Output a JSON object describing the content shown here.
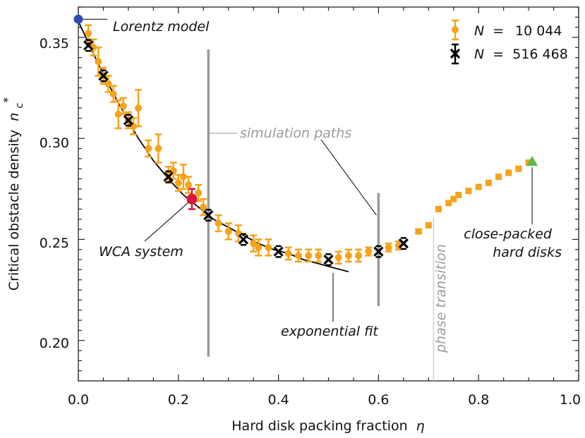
{
  "chart_data": {
    "type": "scatter",
    "xlabel": "Hard disk packing fraction",
    "xlabel_symbol": "η",
    "ylabel": "Critical obstacle density",
    "ylabel_symbol": "n",
    "ylabel_sub": "c",
    "ylabel_sup": "*",
    "xlim": [
      0.0,
      1.0
    ],
    "ylim": [
      0.18,
      0.365
    ],
    "x_ticks": [
      0.0,
      0.2,
      0.4,
      0.6,
      0.8,
      1.0
    ],
    "x_tick_labels": [
      "0.0",
      "0.2",
      "0.4",
      "0.6",
      "0.8",
      "1.0"
    ],
    "y_ticks": [
      0.2,
      0.25,
      0.3,
      0.35
    ],
    "y_tick_labels": [
      "0.20",
      "0.25",
      "0.30",
      "0.35"
    ],
    "legend": {
      "position": "top-right",
      "entries": [
        {
          "label_prefix": "N",
          "label_eq": "=",
          "label_value": "10 044"
        },
        {
          "label_prefix": "N",
          "label_eq": "=",
          "label_value": "516 468"
        }
      ]
    },
    "series": [
      {
        "name": "N = 10 044",
        "color": "#f5a31a",
        "marker": "circle",
        "points": [
          {
            "x": 0.02,
            "y": 0.352,
            "err": 0.004
          },
          {
            "x": 0.03,
            "y": 0.345,
            "err": 0.004
          },
          {
            "x": 0.04,
            "y": 0.338,
            "err": 0.007
          },
          {
            "x": 0.05,
            "y": 0.331,
            "err": 0.004
          },
          {
            "x": 0.06,
            "y": 0.327,
            "err": 0.004
          },
          {
            "x": 0.07,
            "y": 0.322,
            "err": 0.004
          },
          {
            "x": 0.08,
            "y": 0.312,
            "err": 0.007
          },
          {
            "x": 0.09,
            "y": 0.316,
            "err": 0.004
          },
          {
            "x": 0.1,
            "y": 0.309,
            "err": 0.004
          },
          {
            "x": 0.11,
            "y": 0.306,
            "err": 0.004
          },
          {
            "x": 0.12,
            "y": 0.315,
            "err": 0.009
          },
          {
            "x": 0.14,
            "y": 0.295,
            "err": 0.004
          },
          {
            "x": 0.16,
            "y": 0.295,
            "err": 0.007
          },
          {
            "x": 0.18,
            "y": 0.282,
            "err": 0.004
          },
          {
            "x": 0.19,
            "y": 0.284,
            "err": 0.004
          },
          {
            "x": 0.2,
            "y": 0.278,
            "err": 0.004
          },
          {
            "x": 0.21,
            "y": 0.281,
            "err": 0.006
          },
          {
            "x": 0.22,
            "y": 0.277,
            "err": 0.004
          },
          {
            "x": 0.24,
            "y": 0.273,
            "err": 0.004
          },
          {
            "x": 0.25,
            "y": 0.266,
            "err": 0.004
          },
          {
            "x": 0.28,
            "y": 0.258,
            "err": 0.004
          },
          {
            "x": 0.3,
            "y": 0.254,
            "err": 0.004
          },
          {
            "x": 0.32,
            "y": 0.253,
            "err": 0.004
          },
          {
            "x": 0.35,
            "y": 0.248,
            "err": 0.004
          },
          {
            "x": 0.36,
            "y": 0.246,
            "err": 0.004
          },
          {
            "x": 0.38,
            "y": 0.246,
            "err": 0.004
          },
          {
            "x": 0.42,
            "y": 0.243,
            "err": 0.003
          },
          {
            "x": 0.44,
            "y": 0.242,
            "err": 0.003
          },
          {
            "x": 0.46,
            "y": 0.242,
            "err": 0.003
          },
          {
            "x": 0.48,
            "y": 0.242,
            "err": 0.003
          },
          {
            "x": 0.52,
            "y": 0.241,
            "err": 0.003
          },
          {
            "x": 0.54,
            "y": 0.242,
            "err": 0.003
          },
          {
            "x": 0.56,
            "y": 0.242,
            "err": 0.003
          },
          {
            "x": 0.58,
            "y": 0.244,
            "err": 0.002
          },
          {
            "x": 0.62,
            "y": 0.246,
            "err": 0.002
          },
          {
            "x": 0.64,
            "y": 0.247,
            "err": 0.002
          },
          {
            "x": 0.68,
            "y": 0.254,
            "err": 0.001
          },
          {
            "x": 0.7,
            "y": 0.257,
            "err": 0.001
          },
          {
            "x": 0.72,
            "y": 0.265,
            "err": 0.001
          },
          {
            "x": 0.74,
            "y": 0.268,
            "err": 0.001
          },
          {
            "x": 0.75,
            "y": 0.27,
            "err": 0.001
          },
          {
            "x": 0.76,
            "y": 0.272,
            "err": 0.001
          },
          {
            "x": 0.78,
            "y": 0.274,
            "err": 0.001
          },
          {
            "x": 0.8,
            "y": 0.276,
            "err": 0.001
          },
          {
            "x": 0.82,
            "y": 0.278,
            "err": 0.001
          },
          {
            "x": 0.84,
            "y": 0.281,
            "err": 0.001
          },
          {
            "x": 0.86,
            "y": 0.283,
            "err": 0.001
          },
          {
            "x": 0.88,
            "y": 0.285,
            "err": 0.001
          },
          {
            "x": 0.9,
            "y": 0.288,
            "err": 0.001
          }
        ]
      },
      {
        "name": "N = 516 468",
        "color": "#000000",
        "marker": "x",
        "points": [
          {
            "x": 0.02,
            "y": 0.346,
            "err": 0.002
          },
          {
            "x": 0.05,
            "y": 0.331,
            "err": 0.002
          },
          {
            "x": 0.1,
            "y": 0.309,
            "err": 0.002
          },
          {
            "x": 0.18,
            "y": 0.281,
            "err": 0.002
          },
          {
            "x": 0.26,
            "y": 0.262,
            "err": 0.002
          },
          {
            "x": 0.33,
            "y": 0.25,
            "err": 0.002
          },
          {
            "x": 0.4,
            "y": 0.244,
            "err": 0.002
          },
          {
            "x": 0.5,
            "y": 0.24,
            "err": 0.002
          },
          {
            "x": 0.6,
            "y": 0.244,
            "err": 0.002
          },
          {
            "x": 0.65,
            "y": 0.248,
            "err": 0.002
          }
        ]
      }
    ],
    "fit_curve": {
      "name": "exponential fit",
      "x": [
        0.0,
        0.03,
        0.06,
        0.09,
        0.12,
        0.15,
        0.18,
        0.21,
        0.24,
        0.27,
        0.3,
        0.33,
        0.36,
        0.39,
        0.42,
        0.45,
        0.48,
        0.51,
        0.54
      ],
      "y": [
        0.358,
        0.342,
        0.327,
        0.313,
        0.3,
        0.289,
        0.28,
        0.272,
        0.266,
        0.26,
        0.256,
        0.252,
        0.248,
        0.245,
        0.243,
        0.24,
        0.238,
        0.236,
        0.234
      ]
    },
    "special_points": [
      {
        "name": "Lorentz model",
        "x": 0.0,
        "y": 0.359,
        "color": "#2b4fa8",
        "marker": "circle"
      },
      {
        "name": "WCA system",
        "x": 0.227,
        "y": 0.27,
        "err": 0.005,
        "color": "#e0143c",
        "marker": "circle"
      },
      {
        "name": "close-packed hard disks",
        "x": 0.907,
        "y": 0.2885,
        "color": "#5cb84a",
        "marker": "triangle"
      }
    ],
    "simulation_paths": [
      {
        "x": 0.26,
        "y_range": [
          0.192,
          0.344
        ]
      },
      {
        "x": 0.6,
        "y_range": [
          0.217,
          0.273
        ]
      }
    ],
    "phase_transition_x": 0.71,
    "annotations": {
      "lorentz": "Lorentz model",
      "wca": "WCA system",
      "sim_paths": "simulation paths",
      "exp_fit": "exponential fit",
      "phase": "phase transition",
      "close_packed_line1": "close-packed",
      "close_packed_line2": "hard disks"
    }
  },
  "colors": {
    "orange": "#f5a31a",
    "black": "#000000",
    "gray": "#9a9a9a",
    "blue": "#2b4fa8",
    "red": "#e0143c",
    "green": "#5cb84a"
  }
}
